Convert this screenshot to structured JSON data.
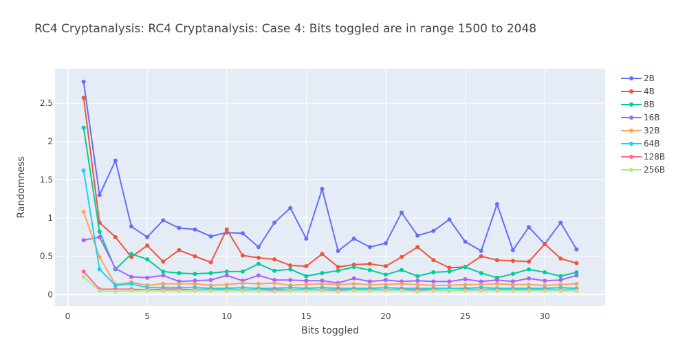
{
  "chart_data": {
    "type": "line",
    "title": "RC4 Cryptanalysis: RC4 Cryptanalysis: Case 4: Bits toggled are in range 1500 to 2048",
    "xlabel": "Bits toggled",
    "ylabel": "Randomness",
    "xlim": [
      -0.8,
      33.8
    ],
    "ylim": [
      -0.15,
      2.95
    ],
    "xticks": [
      0,
      5,
      10,
      15,
      20,
      25,
      30
    ],
    "yticks": [
      0,
      0.5,
      1,
      1.5,
      2,
      2.5
    ],
    "ytick_labels": [
      "0",
      "0.5",
      "1",
      "1.5",
      "2",
      "2.5"
    ],
    "grid": true,
    "legend_position": "right",
    "x": [
      1,
      2,
      3,
      4,
      5,
      6,
      7,
      8,
      9,
      10,
      11,
      12,
      13,
      14,
      15,
      16,
      17,
      18,
      19,
      20,
      21,
      22,
      23,
      24,
      25,
      26,
      27,
      28,
      29,
      30,
      31,
      32
    ],
    "series": [
      {
        "name": "2B",
        "color": "#636efa",
        "values": [
          2.78,
          1.3,
          1.75,
          0.89,
          0.75,
          0.97,
          0.87,
          0.85,
          0.76,
          0.81,
          0.8,
          0.62,
          0.94,
          1.13,
          0.73,
          1.38,
          0.57,
          0.73,
          0.62,
          0.67,
          1.07,
          0.77,
          0.83,
          0.98,
          0.69,
          0.57,
          1.18,
          0.58,
          0.88,
          0.66,
          0.94,
          0.59
        ]
      },
      {
        "name": "4B",
        "color": "#EF553B",
        "values": [
          2.57,
          0.94,
          0.75,
          0.49,
          0.64,
          0.43,
          0.58,
          0.5,
          0.42,
          0.85,
          0.51,
          0.48,
          0.46,
          0.38,
          0.37,
          0.53,
          0.36,
          0.39,
          0.4,
          0.37,
          0.49,
          0.62,
          0.45,
          0.35,
          0.36,
          0.5,
          0.45,
          0.44,
          0.43,
          0.66,
          0.47,
          0.41
        ]
      },
      {
        "name": "8B",
        "color": "#00cc96",
        "values": [
          2.18,
          0.82,
          0.33,
          0.53,
          0.46,
          0.3,
          0.28,
          0.27,
          0.28,
          0.3,
          0.3,
          0.4,
          0.31,
          0.33,
          0.24,
          0.28,
          0.31,
          0.36,
          0.32,
          0.26,
          0.32,
          0.24,
          0.29,
          0.3,
          0.36,
          0.28,
          0.22,
          0.27,
          0.33,
          0.29,
          0.24,
          0.29
        ]
      },
      {
        "name": "16B",
        "color": "#ab63fa",
        "values": [
          0.71,
          0.75,
          0.34,
          0.23,
          0.22,
          0.25,
          0.17,
          0.18,
          0.19,
          0.25,
          0.18,
          0.25,
          0.19,
          0.19,
          0.18,
          0.18,
          0.15,
          0.21,
          0.17,
          0.19,
          0.17,
          0.18,
          0.17,
          0.17,
          0.2,
          0.17,
          0.19,
          0.17,
          0.21,
          0.18,
          0.19,
          0.25
        ]
      },
      {
        "name": "32B",
        "color": "#FFA15A",
        "values": [
          1.08,
          0.49,
          0.13,
          0.16,
          0.12,
          0.14,
          0.14,
          0.14,
          0.12,
          0.13,
          0.15,
          0.14,
          0.15,
          0.12,
          0.13,
          0.14,
          0.13,
          0.14,
          0.13,
          0.13,
          0.14,
          0.13,
          0.12,
          0.12,
          0.13,
          0.13,
          0.14,
          0.13,
          0.13,
          0.12,
          0.13,
          0.14
        ]
      },
      {
        "name": "64B",
        "color": "#19d3f3",
        "values": [
          1.62,
          0.33,
          0.12,
          0.14,
          0.09,
          0.09,
          0.09,
          0.09,
          0.08,
          0.08,
          0.09,
          0.08,
          0.08,
          0.09,
          0.08,
          0.09,
          0.08,
          0.08,
          0.08,
          0.09,
          0.08,
          0.08,
          0.08,
          0.08,
          0.08,
          0.09,
          0.08,
          0.08,
          0.08,
          0.08,
          0.09,
          0.08
        ]
      },
      {
        "name": "128B",
        "color": "#FF6692",
        "values": [
          0.3,
          0.07,
          0.07,
          0.07,
          0.06,
          0.07,
          0.07,
          0.06,
          0.06,
          0.06,
          0.06,
          0.06,
          0.06,
          0.06,
          0.06,
          0.06,
          0.06,
          0.06,
          0.06,
          0.06,
          0.06,
          0.06,
          0.06,
          0.05,
          0.06,
          0.06,
          0.06,
          0.06,
          0.06,
          0.06,
          0.06,
          0.06
        ]
      },
      {
        "name": "256B",
        "color": "#B6E880",
        "values": [
          0.23,
          0.05,
          0.04,
          0.05,
          0.05,
          0.05,
          0.05,
          0.05,
          0.05,
          0.05,
          0.05,
          0.05,
          0.04,
          0.05,
          0.05,
          0.05,
          0.04,
          0.05,
          0.05,
          0.05,
          0.05,
          0.04,
          0.05,
          0.05,
          0.05,
          0.05,
          0.05,
          0.05,
          0.05,
          0.05,
          0.05,
          0.05
        ]
      }
    ]
  }
}
